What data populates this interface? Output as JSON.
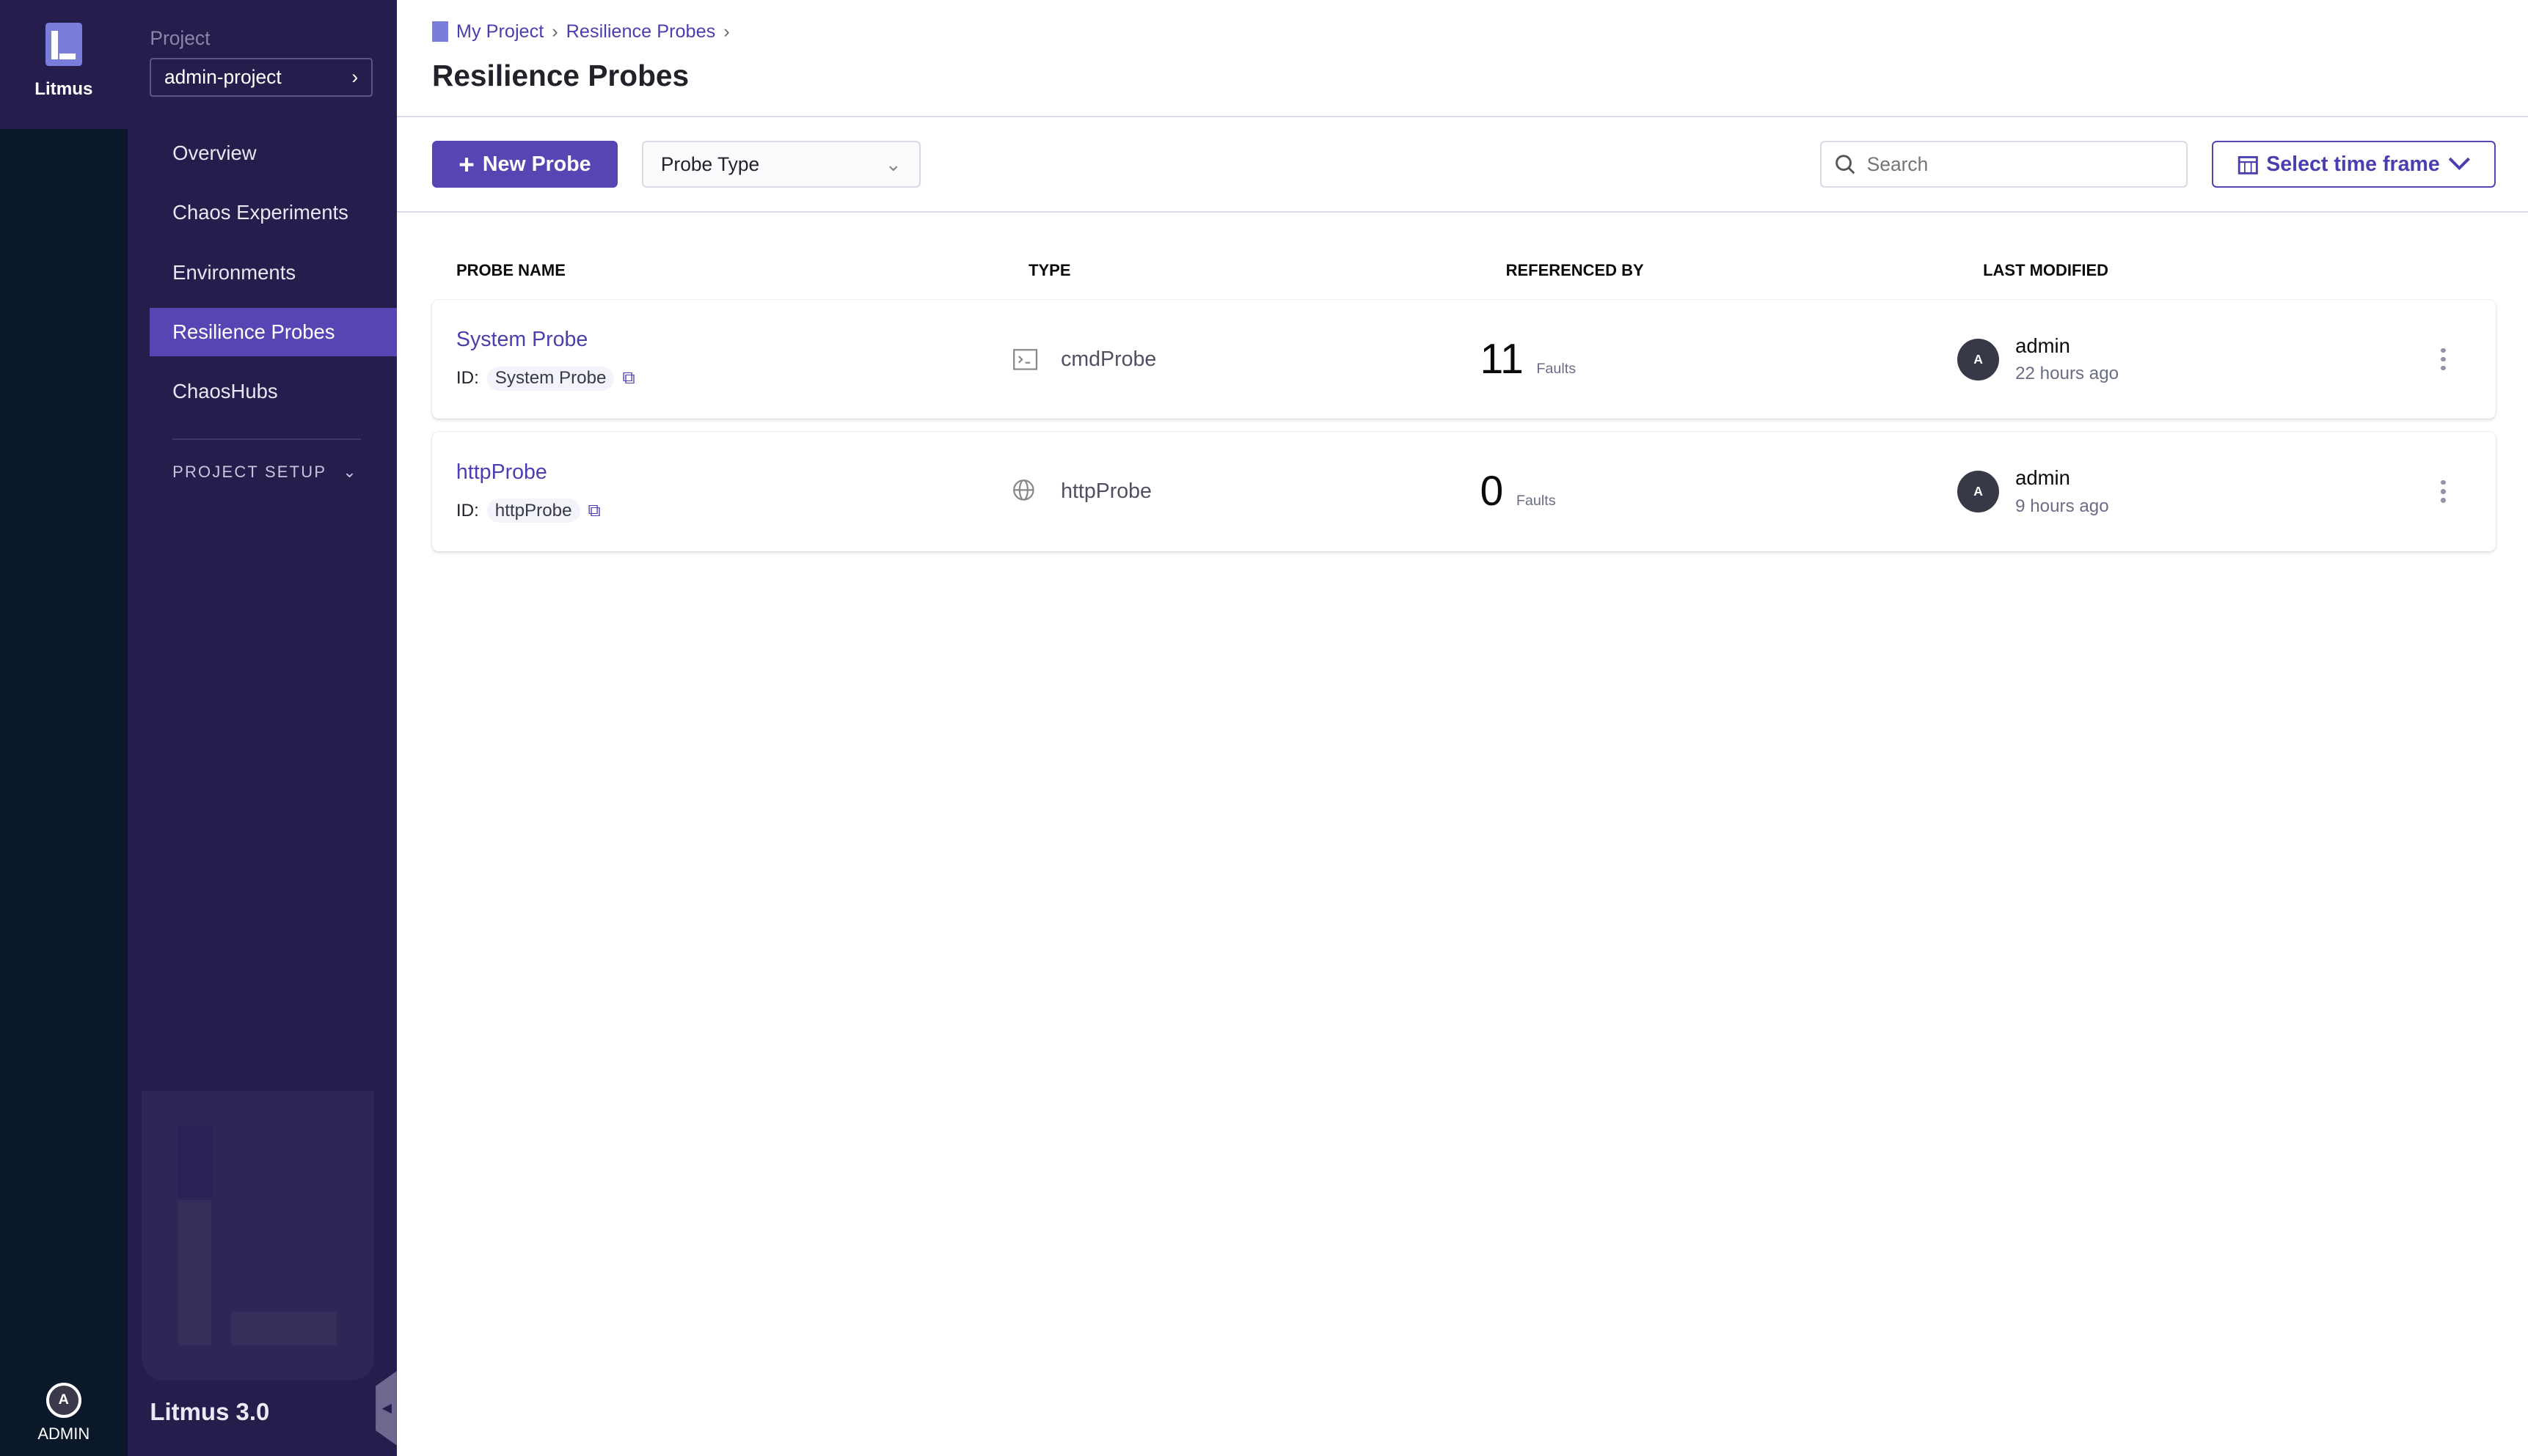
{
  "rail": {
    "brand": "Litmus",
    "user": "ADMIN",
    "user_initial": "A"
  },
  "nav": {
    "project_label": "Project",
    "project": "admin-project",
    "items": [
      {
        "label": "Overview"
      },
      {
        "label": "Chaos Experiments"
      },
      {
        "label": "Environments"
      },
      {
        "label": "Resilience Probes",
        "active": true
      },
      {
        "label": "ChaosHubs"
      }
    ],
    "setup": "PROJECT SETUP",
    "version": "Litmus 3.0"
  },
  "header": {
    "breadcrumb": [
      "My Project",
      "Resilience Probes"
    ],
    "title": "Resilience Probes"
  },
  "toolbar": {
    "new_probe": "New Probe",
    "probe_type": "Probe Type",
    "search_placeholder": "Search",
    "time_frame": "Select time frame"
  },
  "table": {
    "columns": [
      "PROBE NAME",
      "TYPE",
      "REFERENCED BY",
      "LAST MODIFIED"
    ],
    "id_label": "ID:",
    "faults_label": "Faults",
    "rows": [
      {
        "name": "System Probe",
        "id": "System Probe",
        "type": "cmdProbe",
        "type_icon": "terminal-icon",
        "referenced": "11",
        "user": "admin",
        "user_initial": "A",
        "modified": "22 hours ago"
      },
      {
        "name": "httpProbe",
        "id": "httpProbe",
        "type": "httpProbe",
        "type_icon": "globe-icon",
        "referenced": "0",
        "user": "admin",
        "user_initial": "A",
        "modified": "9 hours ago"
      }
    ]
  },
  "colors": {
    "accent": "#5745b4",
    "sidebar": "#251e4d",
    "rail": "#0b1829"
  }
}
